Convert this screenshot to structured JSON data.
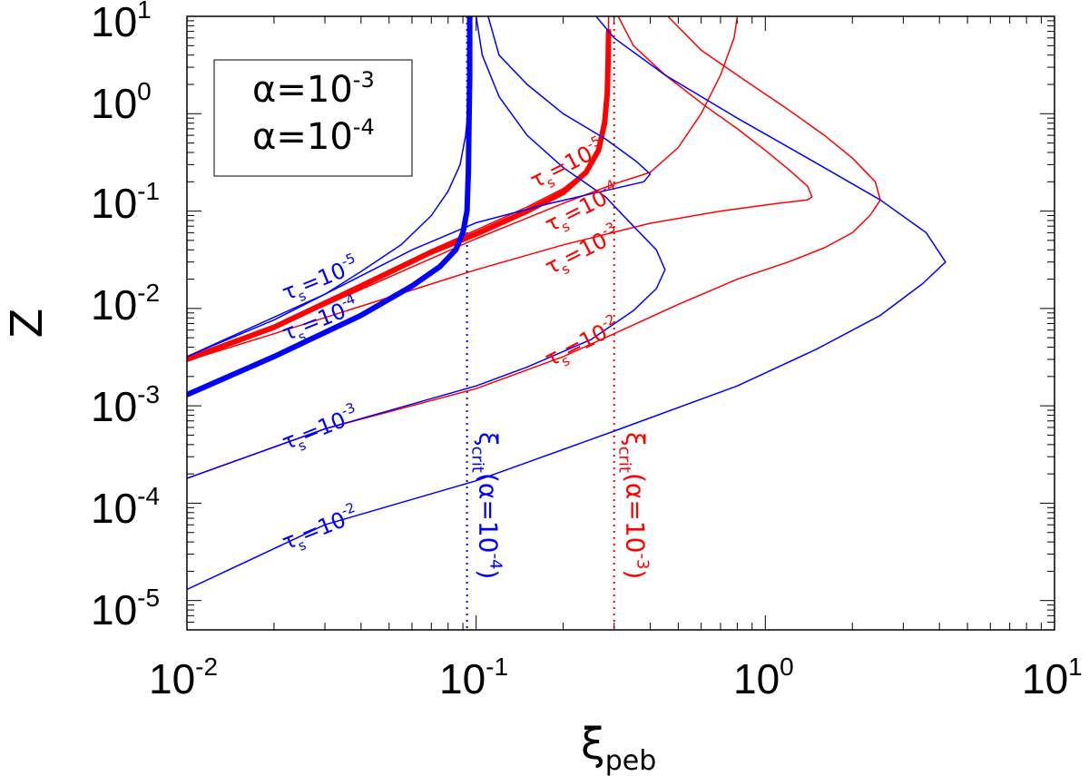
{
  "chart_data": {
    "type": "line",
    "title": "",
    "xscale": "log",
    "yscale": "log",
    "xlim": [
      0.01,
      10
    ],
    "ylim": [
      5e-06,
      10
    ],
    "xlabel": {
      "base": "ξ",
      "sub": "peb"
    },
    "ylabel": "Z",
    "x_ticks": [
      {
        "value": 0.01,
        "base": "10",
        "exp": "-2"
      },
      {
        "value": 0.1,
        "base": "10",
        "exp": "-1"
      },
      {
        "value": 1,
        "base": "10",
        "exp": "0"
      },
      {
        "value": 10,
        "base": "10",
        "exp": "1"
      }
    ],
    "y_ticks": [
      {
        "value": 1e-05,
        "base": "10",
        "exp": "-5"
      },
      {
        "value": 0.0001,
        "base": "10",
        "exp": "-4"
      },
      {
        "value": 0.001,
        "base": "10",
        "exp": "-3"
      },
      {
        "value": 0.01,
        "base": "10",
        "exp": "-2"
      },
      {
        "value": 0.1,
        "base": "10",
        "exp": "-1"
      },
      {
        "value": 1,
        "base": "10",
        "exp": "0"
      },
      {
        "value": 10,
        "base": "10",
        "exp": "1"
      }
    ],
    "legend": {
      "position": "top-left",
      "entries": [
        {
          "prefix": "α=10",
          "exp": "-3",
          "color": "#ff0000"
        },
        {
          "prefix": "α=10",
          "exp": "-4",
          "color": "#0000ff"
        }
      ]
    },
    "colors": {
      "red": "#ff0000",
      "blue": "#0000ff",
      "axis": "#000000"
    },
    "series": [
      {
        "name": "alpha1e-3-taus1e-5",
        "color": "#ff0000",
        "width": "thin",
        "points": [
          [
            0.01,
            0.0031
          ],
          [
            0.02,
            0.0065
          ],
          [
            0.04,
            0.017
          ],
          [
            0.07,
            0.04
          ],
          [
            0.1,
            0.064
          ],
          [
            0.15,
            0.11
          ],
          [
            0.2,
            0.17
          ],
          [
            0.24,
            0.26
          ],
          [
            0.265,
            0.42
          ],
          [
            0.278,
            0.75
          ],
          [
            0.284,
            1.5
          ],
          [
            0.286,
            3
          ],
          [
            0.287,
            10
          ]
        ]
      },
      {
        "name": "alpha1e-3-taus1e-4",
        "color": "#ff0000",
        "width": "thin",
        "points": [
          [
            0.01,
            0.003
          ],
          [
            0.02,
            0.0063
          ],
          [
            0.05,
            0.021
          ],
          [
            0.1,
            0.052
          ],
          [
            0.2,
            0.12
          ],
          [
            0.3,
            0.19
          ],
          [
            0.4,
            0.25
          ],
          [
            0.5,
            0.45
          ],
          [
            0.6,
            1.0
          ],
          [
            0.7,
            2.5
          ],
          [
            0.78,
            6
          ],
          [
            0.8,
            10
          ]
        ]
      },
      {
        "name": "alpha1e-3-taus1e-3",
        "color": "#ff0000",
        "width": "thin",
        "points": [
          [
            0.01,
            0.0029
          ],
          [
            0.02,
            0.0055
          ],
          [
            0.05,
            0.013
          ],
          [
            0.1,
            0.025
          ],
          [
            0.2,
            0.045
          ],
          [
            0.4,
            0.075
          ],
          [
            0.7,
            0.1
          ],
          [
            1.1,
            0.12
          ],
          [
            1.4,
            0.13
          ],
          [
            1.45,
            0.14
          ],
          [
            1.4,
            0.18
          ],
          [
            1.2,
            0.27
          ],
          [
            1.0,
            0.42
          ],
          [
            0.8,
            0.7
          ],
          [
            0.62,
            1.2
          ],
          [
            0.45,
            2.5
          ],
          [
            0.35,
            5
          ],
          [
            0.31,
            10
          ]
        ]
      },
      {
        "name": "alpha1e-3-taus1e-2",
        "color": "#ff0000",
        "width": "thin",
        "points": [
          [
            0.01,
            0.00018
          ],
          [
            0.03,
            0.00058
          ],
          [
            0.1,
            0.0015
          ],
          [
            0.2,
            0.0032
          ],
          [
            0.3,
            0.0055
          ],
          [
            0.5,
            0.011
          ],
          [
            0.8,
            0.02
          ],
          [
            1.2,
            0.03
          ],
          [
            1.6,
            0.042
          ],
          [
            2.0,
            0.06
          ],
          [
            2.3,
            0.09
          ],
          [
            2.5,
            0.13
          ],
          [
            2.4,
            0.2
          ],
          [
            2.0,
            0.35
          ],
          [
            1.6,
            0.6
          ],
          [
            1.2,
            1.1
          ],
          [
            0.85,
            2.2
          ],
          [
            0.6,
            4.5
          ],
          [
            0.46,
            10
          ]
        ]
      },
      {
        "name": "alpha1e-3-thick",
        "color": "#ff0000",
        "width": "thick",
        "points": [
          [
            0.01,
            0.003
          ],
          [
            0.02,
            0.0064
          ],
          [
            0.04,
            0.017
          ],
          [
            0.07,
            0.038
          ],
          [
            0.1,
            0.058
          ],
          [
            0.15,
            0.1
          ],
          [
            0.2,
            0.155
          ],
          [
            0.24,
            0.25
          ],
          [
            0.265,
            0.42
          ],
          [
            0.278,
            0.8
          ],
          [
            0.284,
            1.6
          ],
          [
            0.286,
            3.5
          ],
          [
            0.287,
            7
          ]
        ]
      },
      {
        "name": "alpha1e-4-taus1e-5",
        "color": "#0000ff",
        "width": "thin",
        "points": [
          [
            0.01,
            0.0032
          ],
          [
            0.02,
            0.0076
          ],
          [
            0.03,
            0.014
          ],
          [
            0.04,
            0.024
          ],
          [
            0.055,
            0.045
          ],
          [
            0.07,
            0.09
          ],
          [
            0.08,
            0.16
          ],
          [
            0.088,
            0.3
          ],
          [
            0.092,
            0.6
          ],
          [
            0.094,
            1.2
          ],
          [
            0.095,
            3
          ],
          [
            0.096,
            10
          ]
        ]
      },
      {
        "name": "alpha1e-4-taus1e-4",
        "color": "#0000ff",
        "width": "thin",
        "points": [
          [
            0.01,
            0.0032
          ],
          [
            0.03,
            0.014
          ],
          [
            0.06,
            0.04
          ],
          [
            0.1,
            0.076
          ],
          [
            0.18,
            0.12
          ],
          [
            0.3,
            0.17
          ],
          [
            0.38,
            0.2
          ],
          [
            0.4,
            0.24
          ],
          [
            0.36,
            0.32
          ],
          [
            0.28,
            0.55
          ],
          [
            0.2,
            1.0
          ],
          [
            0.15,
            2.0
          ],
          [
            0.12,
            4
          ],
          [
            0.11,
            10
          ]
        ]
      },
      {
        "name": "alpha1e-4-taus1e-3",
        "color": "#0000ff",
        "width": "thin",
        "points": [
          [
            0.01,
            0.00018
          ],
          [
            0.03,
            0.00058
          ],
          [
            0.1,
            0.0016
          ],
          [
            0.15,
            0.0025
          ],
          [
            0.25,
            0.0048
          ],
          [
            0.35,
            0.0095
          ],
          [
            0.42,
            0.016
          ],
          [
            0.45,
            0.025
          ],
          [
            0.42,
            0.04
          ],
          [
            0.35,
            0.07
          ],
          [
            0.28,
            0.14
          ],
          [
            0.2,
            0.28
          ],
          [
            0.15,
            0.6
          ],
          [
            0.12,
            1.5
          ],
          [
            0.105,
            4
          ],
          [
            0.1,
            10
          ]
        ]
      },
      {
        "name": "alpha1e-4-taus1e-2",
        "color": "#0000ff",
        "width": "thin",
        "points": [
          [
            0.01,
            1.3e-05
          ],
          [
            0.03,
            6e-05
          ],
          [
            0.1,
            0.00017
          ],
          [
            0.3,
            0.00055
          ],
          [
            0.8,
            0.0016
          ],
          [
            1.5,
            0.0038
          ],
          [
            2.5,
            0.0085
          ],
          [
            3.5,
            0.018
          ],
          [
            4.2,
            0.03
          ],
          [
            3.6,
            0.06
          ],
          [
            2.5,
            0.13
          ],
          [
            1.4,
            0.35
          ],
          [
            0.8,
            0.9
          ],
          [
            0.45,
            2.5
          ],
          [
            0.3,
            6
          ],
          [
            0.26,
            10
          ]
        ]
      },
      {
        "name": "alpha1e-4-thick",
        "color": "#0000ff",
        "width": "thick",
        "points": [
          [
            0.01,
            0.0013
          ],
          [
            0.02,
            0.0032
          ],
          [
            0.04,
            0.0085
          ],
          [
            0.06,
            0.017
          ],
          [
            0.075,
            0.027
          ],
          [
            0.085,
            0.04
          ],
          [
            0.09,
            0.06
          ],
          [
            0.093,
            0.1
          ],
          [
            0.094,
            0.25
          ],
          [
            0.0945,
            0.8
          ],
          [
            0.095,
            2.5
          ],
          [
            0.095,
            10
          ]
        ]
      }
    ],
    "critical_lines": [
      {
        "x": 0.093,
        "color": "#0000ff",
        "label_base": "ξ",
        "label_sub": "crit",
        "label_mid": "(α=10",
        "label_exp": "-4",
        "label_end": ")"
      },
      {
        "x": 0.3,
        "color": "#ff0000",
        "label_base": "ξ",
        "label_sub": "crit",
        "label_mid": "(α=10",
        "label_exp": "-3",
        "label_end": ")"
      }
    ],
    "annotations": [
      {
        "base": "τ",
        "sub": "s",
        "mid": "=10",
        "exp": "-5",
        "color": "#ff0000",
        "x": 0.16,
        "y": 0.17,
        "rotate": -27
      },
      {
        "base": "τ",
        "sub": "s",
        "mid": "=10",
        "exp": "-4",
        "color": "#ff0000",
        "x": 0.18,
        "y": 0.06,
        "rotate": -27
      },
      {
        "base": "τ",
        "sub": "s",
        "mid": "=10",
        "exp": "-3",
        "color": "#ff0000",
        "x": 0.18,
        "y": 0.022,
        "rotate": -27
      },
      {
        "base": "τ",
        "sub": "s",
        "mid": "=10",
        "exp": "-2",
        "color": "#ff0000",
        "x": 0.18,
        "y": 0.0025,
        "rotate": -27
      },
      {
        "base": "τ",
        "sub": "s",
        "mid": "=10",
        "exp": "-5",
        "color": "#0000ff",
        "x": 0.022,
        "y": 0.012,
        "rotate": -22
      },
      {
        "base": "τ",
        "sub": "s",
        "mid": "=10",
        "exp": "-4",
        "color": "#0000ff",
        "x": 0.022,
        "y": 0.0046,
        "rotate": -22
      },
      {
        "base": "τ",
        "sub": "s",
        "mid": "=10",
        "exp": "-3",
        "color": "#0000ff",
        "x": 0.022,
        "y": 0.00035,
        "rotate": -22
      },
      {
        "base": "τ",
        "sub": "s",
        "mid": "=10",
        "exp": "-2",
        "color": "#0000ff",
        "x": 0.022,
        "y": 3.3e-05,
        "rotate": -22
      }
    ]
  }
}
